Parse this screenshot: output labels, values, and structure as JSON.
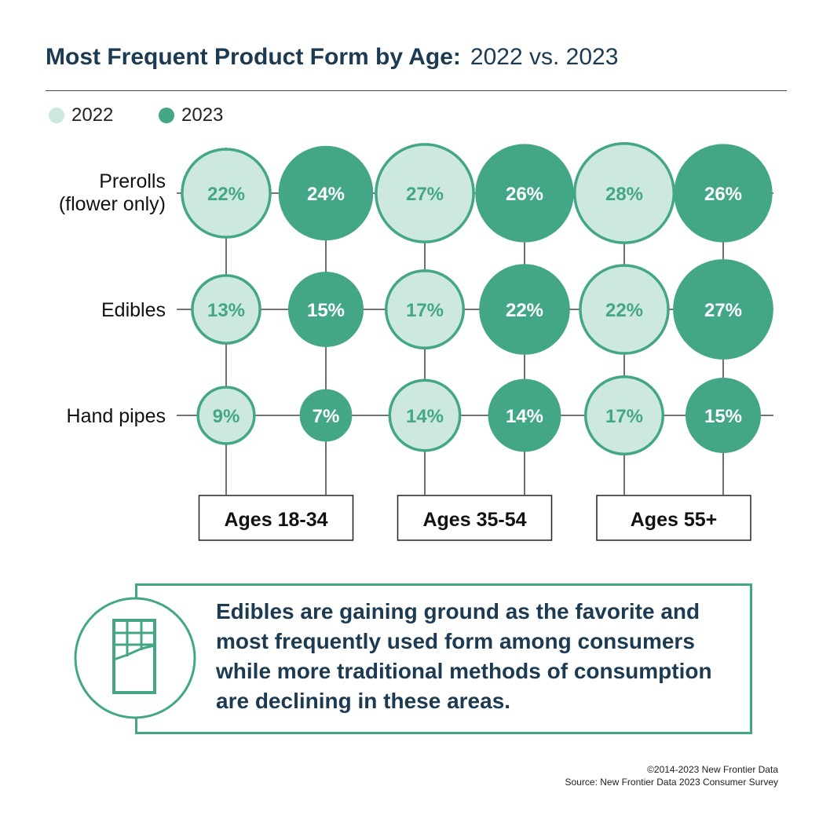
{
  "title": {
    "bold": "Most Frequent Product Form by Age:",
    "light": "2022 vs. 2023"
  },
  "colors": {
    "light_fill": "#cde9df",
    "dark_fill": "#43a787",
    "outline": "#43a787",
    "title_text": "#1c3a52"
  },
  "legend": [
    {
      "label": "2022",
      "color": "#cde9df"
    },
    {
      "label": "2023",
      "color": "#43a787"
    }
  ],
  "chart_data": {
    "type": "bubble-matrix",
    "unit": "%",
    "rows": [
      "Prerolls (flower only)",
      "Edibles",
      "Hand pipes"
    ],
    "row_label_lines": [
      [
        "Prerolls",
        "(flower only)"
      ],
      [
        "Edibles"
      ],
      [
        "Hand pipes"
      ]
    ],
    "groups": [
      "Ages 18-34",
      "Ages 35-54",
      "Ages 55+"
    ],
    "series": [
      {
        "name": "2022",
        "color": "#cde9df",
        "values": [
          [
            22,
            27,
            28
          ],
          [
            13,
            17,
            22
          ],
          [
            9,
            14,
            17
          ]
        ]
      },
      {
        "name": "2023",
        "color": "#43a787",
        "values": [
          [
            24,
            26,
            26
          ],
          [
            15,
            22,
            27
          ],
          [
            7,
            14,
            15
          ]
        ]
      }
    ]
  },
  "callout": {
    "text": "Edibles are gaining ground as the favorite and most frequently used form among consumers while more traditional methods of consumption are declining in these areas.",
    "icon": "chocolate-bar-icon"
  },
  "footer": {
    "copyright": "©2014-2023  New Frontier Data",
    "source": "Source: New Frontier Data 2023 Consumer Survey"
  }
}
